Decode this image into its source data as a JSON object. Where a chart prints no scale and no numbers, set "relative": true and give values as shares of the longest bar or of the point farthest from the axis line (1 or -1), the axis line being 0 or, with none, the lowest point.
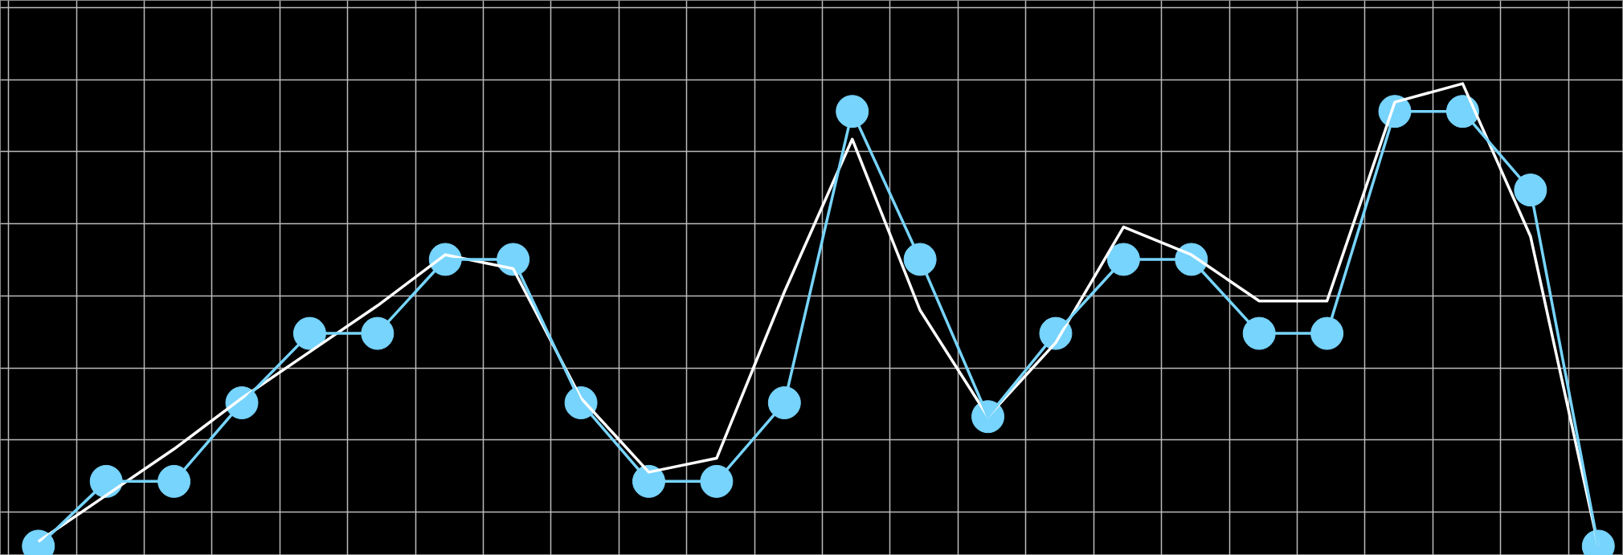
{
  "chart_data": {
    "type": "line",
    "relative": true,
    "grid": true,
    "tick_labels": false,
    "categories": [
      null,
      null,
      null,
      null,
      null,
      null,
      null,
      null,
      null,
      null,
      null,
      null,
      null,
      null,
      null,
      null,
      null,
      null,
      null,
      null,
      null,
      null,
      null,
      null
    ],
    "series": [
      {
        "color": "#ffffff",
        "marker": "none",
        "values": [
          0.01,
          0.11,
          0.21,
          0.32,
          0.42,
          0.52,
          0.63,
          0.6,
          0.32,
          0.16,
          0.19,
          0.55,
          0.88,
          0.51,
          0.28,
          0.44,
          0.69,
          0.63,
          0.53,
          0.53,
          0.96,
          1.0,
          0.67,
          0
        ]
      },
      {
        "color": "#77d4fc",
        "marker": "circle",
        "values": [
          0,
          0.14,
          0.14,
          0.31,
          0.46,
          0.46,
          0.62,
          0.62,
          0.31,
          0.14,
          0.14,
          0.31,
          0.94,
          0.62,
          0.28,
          0.46,
          0.62,
          0.62,
          0.46,
          0.46,
          0.94,
          0.94,
          0.77,
          0
        ]
      }
    ]
  }
}
